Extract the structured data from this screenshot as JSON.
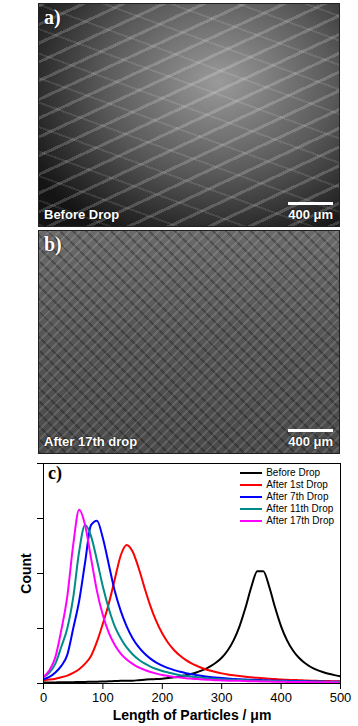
{
  "panels": [
    {
      "label": "a)",
      "caption": "Before Drop",
      "scale_bar": "400 μm"
    },
    {
      "label": "b)",
      "caption": "After 17th drop",
      "scale_bar": "400 μm"
    }
  ],
  "chart_data": {
    "type": "line",
    "annotations": [
      "c)"
    ],
    "x_label": "Length of Particles / μm",
    "y_label": "Count",
    "xlim": [
      0,
      500
    ],
    "xticks": [
      0,
      100,
      200,
      300,
      400,
      500
    ],
    "ylim": [
      0,
      1
    ],
    "yticks": [
      0,
      0.25,
      0.5,
      0.75,
      1
    ],
    "tick_labels": "x",
    "grid": false,
    "legend": "top-right",
    "x": [
      0,
      10,
      20,
      30,
      40,
      50,
      60,
      70,
      80,
      90,
      100,
      110,
      120,
      130,
      140,
      150,
      160,
      170,
      180,
      190,
      200,
      210,
      220,
      230,
      240,
      250,
      260,
      270,
      280,
      290,
      300,
      310,
      320,
      330,
      340,
      350,
      360,
      370,
      380,
      390,
      400,
      410,
      420,
      430,
      440,
      450,
      460,
      470,
      480,
      490,
      500
    ],
    "series": [
      {
        "name": "Before Drop",
        "color": "#000000",
        "values": [
          0.005,
          0.005,
          0.005,
          0.006,
          0.006,
          0.006,
          0.007,
          0.007,
          0.008,
          0.008,
          0.009,
          0.01,
          0.011,
          0.012,
          0.013,
          0.013,
          0.015,
          0.017,
          0.019,
          0.02,
          0.022,
          0.025,
          0.028,
          0.032,
          0.038,
          0.044,
          0.053,
          0.063,
          0.077,
          0.094,
          0.117,
          0.15,
          0.196,
          0.26,
          0.344,
          0.44,
          0.51,
          0.51,
          0.44,
          0.344,
          0.26,
          0.196,
          0.15,
          0.117,
          0.093,
          0.075,
          0.062,
          0.052,
          0.044,
          0.038,
          0.033
        ]
      },
      {
        "name": "After 1st Drop",
        "color": "#ff0000",
        "values": [
          0.015,
          0.018,
          0.022,
          0.028,
          0.036,
          0.048,
          0.065,
          0.09,
          0.125,
          0.19,
          0.273,
          0.364,
          0.474,
          0.582,
          0.63,
          0.6,
          0.526,
          0.436,
          0.352,
          0.282,
          0.227,
          0.184,
          0.151,
          0.126,
          0.106,
          0.09,
          0.078,
          0.067,
          0.059,
          0.052,
          0.046,
          0.041,
          0.037,
          0.034,
          0.031,
          0.028,
          0.026,
          0.024,
          0.022,
          0.02,
          0.018,
          0.017,
          0.016,
          0.015,
          0.014,
          0.013,
          0.012,
          0.011,
          0.011,
          0.01,
          0.01
        ]
      },
      {
        "name": "After 7th Drop",
        "color": "#0000ff",
        "values": [
          0.02,
          0.03,
          0.05,
          0.08,
          0.13,
          0.25,
          0.375,
          0.55,
          0.72,
          0.74,
          0.66,
          0.54,
          0.42,
          0.33,
          0.26,
          0.206,
          0.166,
          0.136,
          0.113,
          0.095,
          0.081,
          0.07,
          0.061,
          0.053,
          0.047,
          0.042,
          0.037,
          0.033,
          0.03,
          0.027,
          0.025,
          0.023,
          0.021,
          0.019,
          0.018,
          0.017,
          0.016,
          0.015,
          0.014,
          0.013,
          0.012,
          0.012,
          0.011,
          0.011,
          0.01,
          0.01,
          0.009,
          0.009,
          0.008,
          0.008,
          0.008
        ]
      },
      {
        "name": "After 11th Drop",
        "color": "#008b8b",
        "values": [
          0.03,
          0.05,
          0.09,
          0.167,
          0.25,
          0.39,
          0.6,
          0.72,
          0.67,
          0.56,
          0.44,
          0.34,
          0.26,
          0.206,
          0.164,
          0.133,
          0.109,
          0.091,
          0.077,
          0.066,
          0.057,
          0.05,
          0.043,
          0.038,
          0.034,
          0.031,
          0.028,
          0.025,
          0.023,
          0.021,
          0.019,
          0.018,
          0.017,
          0.016,
          0.015,
          0.014,
          0.013,
          0.012,
          0.011,
          0.011,
          0.01,
          0.01,
          0.009,
          0.009,
          0.009,
          0.008,
          0.008,
          0.008,
          0.007,
          0.007,
          0.007
        ]
      },
      {
        "name": "After 17th Drop",
        "color": "#ff00ff",
        "values": [
          0.03,
          0.06,
          0.12,
          0.243,
          0.395,
          0.63,
          0.79,
          0.72,
          0.57,
          0.42,
          0.31,
          0.23,
          0.175,
          0.136,
          0.109,
          0.089,
          0.073,
          0.062,
          0.052,
          0.045,
          0.039,
          0.034,
          0.03,
          0.027,
          0.024,
          0.022,
          0.02,
          0.018,
          0.017,
          0.015,
          0.014,
          0.013,
          0.012,
          0.012,
          0.011,
          0.01,
          0.01,
          0.009,
          0.009,
          0.008,
          0.008,
          0.007,
          0.007,
          0.007,
          0.007,
          0.006,
          0.006,
          0.006,
          0.006,
          0.005,
          0.005
        ]
      }
    ]
  }
}
